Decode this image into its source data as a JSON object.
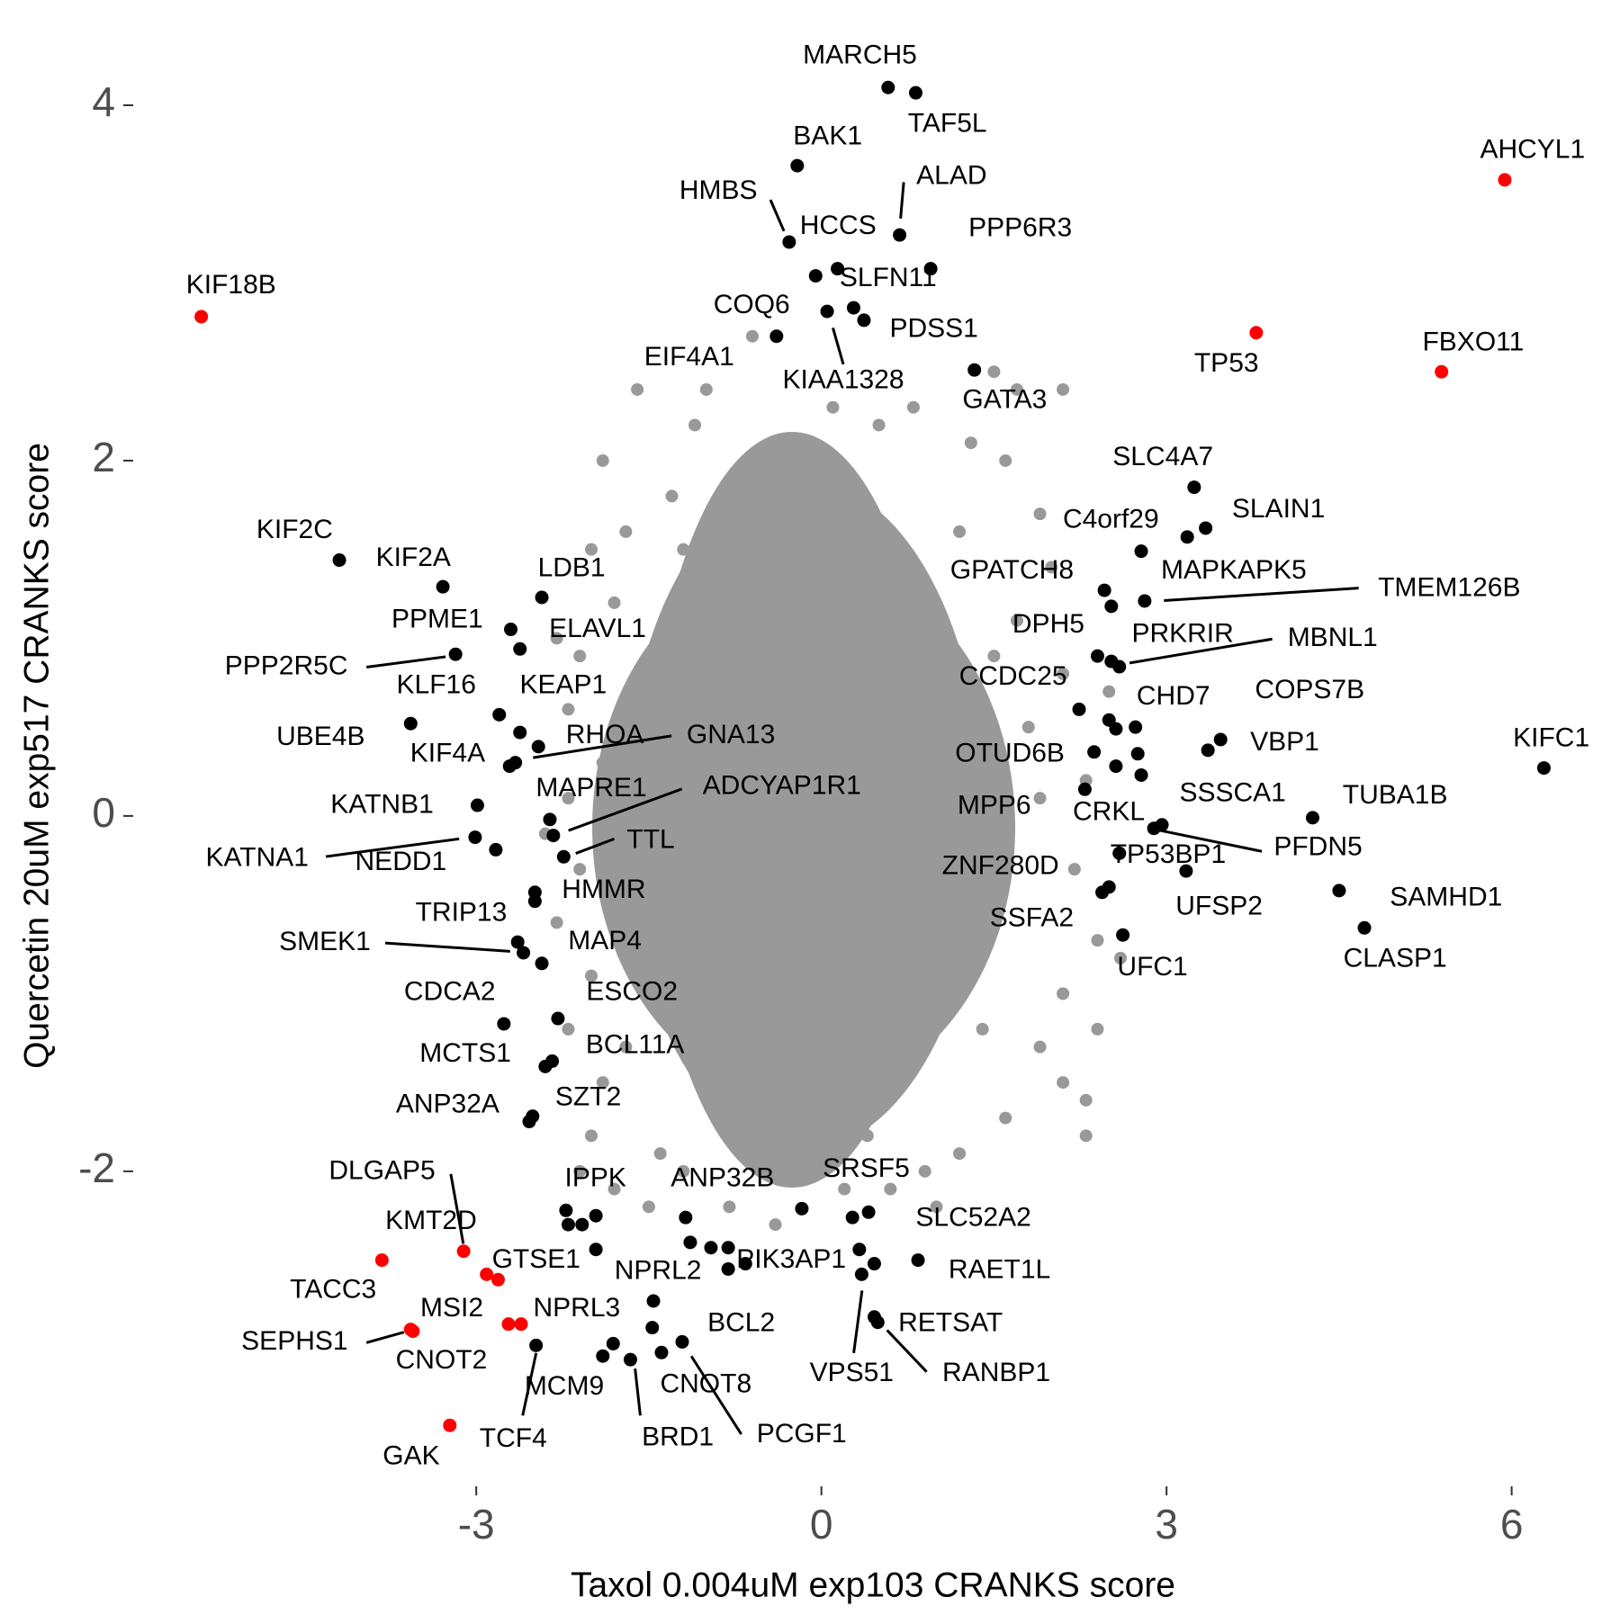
{
  "chart_data": {
    "type": "scatter",
    "xlabel": "Taxol 0.004uM exp103 CRANKS score",
    "ylabel": "Quercetin 20uM exp517 CRANKS score",
    "xlim": [
      -5.96,
      6.8
    ],
    "ylim": [
      -3.76,
      4.36
    ],
    "xticks": [
      -3,
      0,
      3,
      6
    ],
    "yticks": [
      -2,
      0,
      2,
      4
    ],
    "grid": false,
    "series": [
      {
        "color": "#999999",
        "x": [
          -1.9,
          -1.6,
          -1.0,
          -0.6,
          1.5,
          1.7,
          2.1,
          1.3,
          -1.3,
          -2.0,
          -1.8,
          -2.1,
          -2.2,
          -1.9,
          -2.2,
          -2.1,
          -2.3,
          -2.0,
          -2.2,
          -1.9,
          -2.0,
          -1.8,
          -1.5,
          -1.2,
          -0.8,
          -0.4,
          0.2,
          0.6,
          0.9,
          1.2,
          1.6,
          2.1,
          2.3,
          2.1,
          2.4,
          2.4,
          2.2,
          1.9,
          2.3,
          1.8,
          2.1,
          1.7,
          2.0,
          1.9,
          1.6,
          -1.4,
          -1.7,
          -1.6,
          -1.7,
          -1.5,
          1.5,
          1.5,
          1.4,
          1.2,
          -1.2,
          -0.3,
          0.5,
          0.1,
          -0.7,
          0.4,
          -2.4,
          2.6,
          2.3,
          -2.1,
          0.8,
          -1.1,
          1.0,
          1.9,
          -2.3,
          2.5
        ],
        "y": [
          2.0,
          2.4,
          2.4,
          2.7,
          2.5,
          2.4,
          2.4,
          2.1,
          1.8,
          1.5,
          1.2,
          0.9,
          0.6,
          0.3,
          0.1,
          -0.3,
          -0.6,
          -0.9,
          -1.2,
          -1.5,
          -1.8,
          -2.1,
          -2.2,
          -2.0,
          -2.2,
          -2.3,
          -2.1,
          -2.1,
          -2.0,
          -1.9,
          -1.7,
          -1.5,
          -1.8,
          -1.0,
          -1.2,
          -0.7,
          -0.3,
          0.1,
          0.2,
          0.5,
          0.8,
          1.1,
          1.4,
          1.7,
          2.0,
          -1.9,
          -1.3,
          0.8,
          1.6,
          -0.6,
          -0.5,
          0.9,
          -1.2,
          1.6,
          1.5,
          2.1,
          2.2,
          2.3,
          -1.9,
          -1.8,
          -0.1,
          -0.8,
          -1.6,
          -2.0,
          2.3,
          2.2,
          -2.2,
          -1.3,
          1.0,
          0.7
        ]
      },
      {
        "color": "#000000",
        "labels": [
          "MARCH5",
          "TAF5L",
          "BAK1",
          "HMBS",
          "HCCS",
          "ALAD",
          "PPP6R3",
          "SLFN11",
          "COQ6",
          "EIF4A1",
          "KIAA1328",
          "PDSS1",
          "GATA3",
          "SLC4A7",
          "SLAIN1",
          "C4orf29",
          "GPATCH8",
          "MAPKAPK5",
          "TMEM126B",
          "DPH5",
          "PRKRIR",
          "MBNL1",
          "CCDC25",
          "CHD7",
          "COPS7B",
          "VBP1",
          "OTUD6B",
          "KIFC1",
          "MPP6",
          "SSSCA1",
          "TUBA1B",
          "CRKL",
          "PFDN5",
          "TP53BP1",
          "ZNF280D",
          "UFSP2",
          "SAMHD1",
          "SSFA2",
          "CLASP1",
          "UFC1",
          "KIF2C",
          "KIF2A",
          "LDB1",
          "PPME1",
          "ELAVL1",
          "PPP2R5C",
          "KLF16",
          "KEAP1",
          "UBE4B",
          "RHOA",
          "GNA13",
          "KIF4A",
          "MAPRE1",
          "ADCYAP1R1",
          "KATNB1",
          "KATNA1",
          "NEDD1",
          "TTL",
          "HMMR",
          "TRIP13",
          "SMEK1",
          "MAP4",
          "CDCA2",
          "ESCO2",
          "BCL11A",
          "MCTS1",
          "SZT2",
          "ANP32A",
          "IPPK",
          "ANP32B",
          "NPRL2",
          "PIK3AP1",
          "SRSF5",
          "SLC52A2",
          "RAET1L",
          "VPS51",
          "RETSAT",
          "RANBP1",
          "BCL2",
          "CNOT8",
          "PCGF1",
          "BRD1",
          "MCM9",
          "TCF4",
          null,
          null,
          null,
          null,
          null,
          null,
          null,
          null,
          null,
          null,
          null,
          null,
          null,
          null,
          null,
          null,
          null,
          null
        ],
        "x": [
          0.58,
          0.82,
          -0.21,
          -0.28,
          -0.05,
          0.68,
          0.95,
          0.14,
          -0.39,
          0.05,
          0.28,
          0.37,
          1.33,
          3.24,
          3.34,
          2.78,
          2.46,
          2.52,
          2.81,
          2.4,
          2.52,
          2.59,
          2.24,
          2.73,
          3.47,
          3.36,
          2.37,
          6.28,
          2.29,
          2.78,
          4.27,
          2.89,
          2.96,
          2.59,
          2.44,
          3.17,
          4.5,
          2.5,
          4.72,
          2.62,
          -4.19,
          -3.29,
          -2.43,
          -2.7,
          -2.62,
          -3.18,
          -2.8,
          -2.62,
          -3.57,
          -2.46,
          -2.66,
          -2.71,
          -2.36,
          -2.33,
          -2.99,
          -3.01,
          -2.83,
          -2.24,
          -2.49,
          -2.64,
          -2.59,
          -2.43,
          -2.76,
          -2.29,
          -2.34,
          -2.4,
          -2.51,
          -2.54,
          -2.22,
          -1.18,
          -0.81,
          -0.66,
          -0.17,
          0.41,
          0.84,
          0.35,
          0.46,
          0.49,
          -1.21,
          -1.47,
          -1.39,
          -1.66,
          -1.81,
          -2.48,
          3.18,
          2.5,
          2.56,
          2.56,
          2.75,
          -2.49,
          -2.08,
          -1.96,
          -2.2,
          -1.96,
          -1.14,
          -0.96,
          -0.81,
          0.27,
          0.33,
          0.46,
          -1.46,
          -1.9
        ],
        "y": [
          4.1,
          4.07,
          3.66,
          3.23,
          3.04,
          3.27,
          3.08,
          3.08,
          2.7,
          2.84,
          2.86,
          2.79,
          2.51,
          1.85,
          1.62,
          1.49,
          1.27,
          1.18,
          1.21,
          0.9,
          0.87,
          0.84,
          0.6,
          0.5,
          0.43,
          0.37,
          0.36,
          0.27,
          0.15,
          0.23,
          -0.01,
          -0.07,
          -0.05,
          -0.21,
          -0.43,
          -0.31,
          -0.42,
          -0.4,
          -0.63,
          -0.67,
          1.44,
          1.29,
          1.23,
          1.05,
          0.94,
          0.91,
          0.57,
          0.47,
          0.52,
          0.39,
          0.3,
          0.28,
          -0.02,
          -0.11,
          0.06,
          -0.12,
          -0.19,
          -0.23,
          -0.43,
          -0.71,
          -0.77,
          -0.83,
          -1.17,
          -1.14,
          -1.38,
          -1.41,
          -1.69,
          -1.72,
          -2.22,
          -2.26,
          -2.55,
          -2.52,
          -2.21,
          -2.23,
          -2.5,
          -2.58,
          -2.82,
          -2.85,
          -2.96,
          -2.88,
          -3.02,
          -3.06,
          -2.97,
          -2.98,
          1.57,
          0.54,
          0.49,
          0.28,
          0.35,
          -0.48,
          -2.3,
          -2.25,
          -2.3,
          -2.44,
          -2.4,
          -2.43,
          -2.43,
          -2.26,
          -2.44,
          -2.52,
          -2.73,
          -3.04
        ]
      },
      {
        "color": "#ff0000",
        "labels": [
          "AHCYL1",
          "KIF18B",
          "TP53",
          "FBXO11",
          "TACC3",
          "DLGAP5",
          "KMT2D",
          "GTSE1",
          "SEPHS1",
          "CNOT2",
          "MSI2",
          "NPRL3",
          "GAK"
        ],
        "x": [
          5.94,
          -5.39,
          3.78,
          5.39,
          -3.82,
          -3.11,
          -2.91,
          -2.81,
          -3.57,
          -3.55,
          -2.72,
          -2.61,
          -3.23
        ],
        "y": [
          3.58,
          2.81,
          2.72,
          2.5,
          -2.5,
          -2.45,
          -2.58,
          -2.61,
          -2.89,
          -2.9,
          -2.86,
          -2.86,
          -3.43
        ]
      }
    ]
  }
}
